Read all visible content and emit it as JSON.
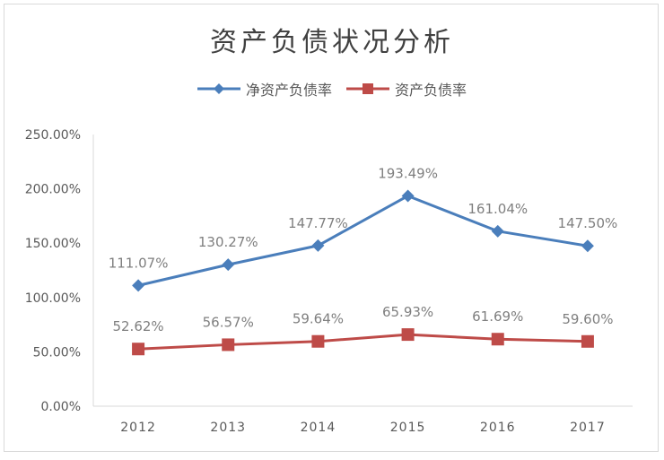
{
  "chart_data": {
    "type": "line",
    "title": "资产负债状况分析",
    "categories": [
      "2012",
      "2013",
      "2014",
      "2015",
      "2016",
      "2017"
    ],
    "series": [
      {
        "name": "净资产负债率",
        "values": [
          111.07,
          130.27,
          147.77,
          193.49,
          161.04,
          147.5
        ],
        "labels": [
          "111.07%",
          "130.27%",
          "147.77%",
          "193.49%",
          "161.04%",
          "147.50%"
        ],
        "color": "#4a7ebb",
        "marker": "diamond"
      },
      {
        "name": "资产负债率",
        "values": [
          52.62,
          56.57,
          59.64,
          65.93,
          61.69,
          59.6
        ],
        "labels": [
          "52.62%",
          "56.57%",
          "59.64%",
          "65.93%",
          "61.69%",
          "59.60%"
        ],
        "color": "#be4b48",
        "marker": "square"
      }
    ],
    "ylim": [
      0,
      250
    ],
    "yticks": [
      0,
      50,
      100,
      150,
      200,
      250
    ],
    "ytick_labels": [
      "0.00%",
      "50.00%",
      "100.00%",
      "150.00%",
      "200.00%",
      "250.00%"
    ],
    "xlabel": "",
    "ylabel": "",
    "grid": false,
    "legend_position": "top"
  }
}
